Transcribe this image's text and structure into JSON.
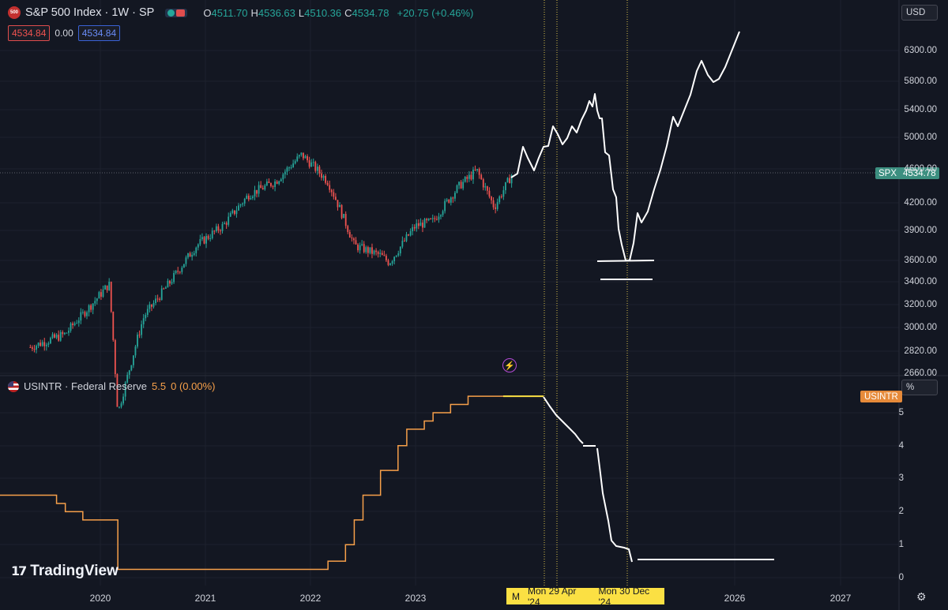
{
  "header": {
    "symbol_icon_text": "500",
    "title": "S&P 500 Index · 1W · SP",
    "ohlc": [
      {
        "key": "O",
        "value": "4511.70"
      },
      {
        "key": "H",
        "value": "4536.63"
      },
      {
        "key": "L",
        "value": "4510.36"
      },
      {
        "key": "C",
        "value": "4534.78"
      }
    ],
    "change": "+20.75 (+0.46%)",
    "bid": "4534.84",
    "spread": "0.00",
    "ask": "4534.84"
  },
  "currency": "USD",
  "price_tag": {
    "symbol": "SPX",
    "value": "4534.78"
  },
  "indicator": {
    "label": "USINTR · Federal Reserve",
    "value": "5.5",
    "change": "0 (0.00%)",
    "tag": "USINTR",
    "unit": "%"
  },
  "price_axis": [
    "6300.00",
    "5800.00",
    "5400.00",
    "5000.00",
    "4600.00",
    "4200.00",
    "3900.00",
    "3600.00",
    "3400.00",
    "3200.00",
    "3000.00",
    "2820.00",
    "2660.00"
  ],
  "rate_axis": [
    "5",
    "4",
    "3",
    "2",
    "1",
    "0"
  ],
  "time_axis": [
    "2020",
    "2021",
    "2022",
    "2023",
    "2026",
    "2027"
  ],
  "crosshair_labels": {
    "m": "M",
    "first": "Mon 29 Apr '24",
    "second": "Mon 30 Dec '24"
  },
  "brand": "TradingView",
  "icons": {
    "settings": "gear-icon",
    "alert": "lightning-icon",
    "flag": "us-flag-icon"
  },
  "colors": {
    "up": "#26a69a",
    "down": "#ef5350",
    "rate": "#f7a04a",
    "drawing": "#ffffff",
    "highlight": "#fbe043"
  },
  "chart_data": [
    {
      "type": "line",
      "title": "S&P 500 Index · 1W · SP",
      "series": [
        {
          "name": "SPX",
          "x": [
            "2019-05",
            "2019-09",
            "2019-12",
            "2020-02",
            "2020-03",
            "2020-06",
            "2020-09",
            "2020-12",
            "2021-03",
            "2021-06",
            "2021-09",
            "2021-12",
            "2022-03",
            "2022-06",
            "2022-09",
            "2022-10",
            "2023-01",
            "2023-03",
            "2023-06",
            "2023-08",
            "2023-10",
            "2023-12"
          ],
          "values": [
            2850,
            2950,
            3200,
            3380,
            2370,
            3100,
            3400,
            3750,
            3950,
            4300,
            4450,
            4780,
            4450,
            3750,
            3650,
            3580,
            3950,
            4000,
            4400,
            4580,
            4150,
            4534
          ]
        }
      ],
      "ylim": [
        2660,
        6500
      ]
    },
    {
      "type": "line",
      "title": "USINTR · Federal Reserve",
      "series": [
        {
          "name": "USINTR",
          "x": [
            "2019-05",
            "2019-08",
            "2019-09",
            "2019-11",
            "2020-03",
            "2020-04",
            "2022-03",
            "2022-05",
            "2022-06",
            "2022-07",
            "2022-09",
            "2022-11",
            "2022-12",
            "2023-02",
            "2023-03",
            "2023-05",
            "2023-07",
            "2023-12"
          ],
          "values": [
            2.5,
            2.25,
            2.0,
            1.75,
            0.25,
            0.25,
            0.5,
            1.0,
            1.75,
            2.5,
            3.25,
            4.0,
            4.5,
            4.75,
            5.0,
            5.25,
            5.5,
            5.5
          ]
        }
      ],
      "ylim": [
        0,
        5.8
      ]
    }
  ]
}
